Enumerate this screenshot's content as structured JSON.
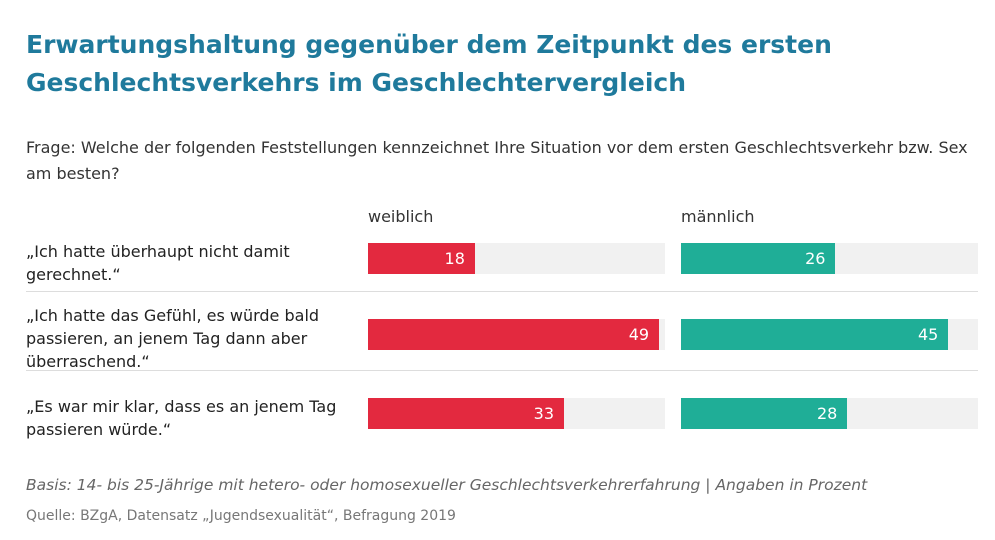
{
  "chart_data": {
    "type": "bar",
    "orientation": "horizontal",
    "title": "Erwartungshaltung gegenüber dem Zeitpunkt des ersten Geschlechtsverkehrs im Geschlechtervergleich",
    "subtitle": "Frage: Welche der folgenden Feststellungen kennzeichnet Ihre Situation vor dem ersten Geschlechtsverkehr bzw. Sex am besten?",
    "categories": [
      "„Ich hatte überhaupt nicht damit gerechnet.“",
      "„Ich hatte das Gefühl, es würde bald passieren, an jenem Tag dann aber überraschend.“",
      "„Es war mir klar, dass es an jenem Tag passieren würde.“"
    ],
    "series": [
      {
        "name": "weiblich",
        "color": "#e3293f",
        "values": [
          18,
          49,
          33
        ]
      },
      {
        "name": "männlich",
        "color": "#1fae97",
        "values": [
          26,
          45,
          28
        ]
      }
    ],
    "xlim": [
      0,
      50
    ],
    "footnote": "Basis: 14- bis 25-Jährige mit hetero- oder homosexueller Geschlechtsverkehrerfahrung | Angaben in Prozent",
    "source": "Quelle: BZgA, Datensatz „Jugendsexualität“, Befragung 2019"
  }
}
